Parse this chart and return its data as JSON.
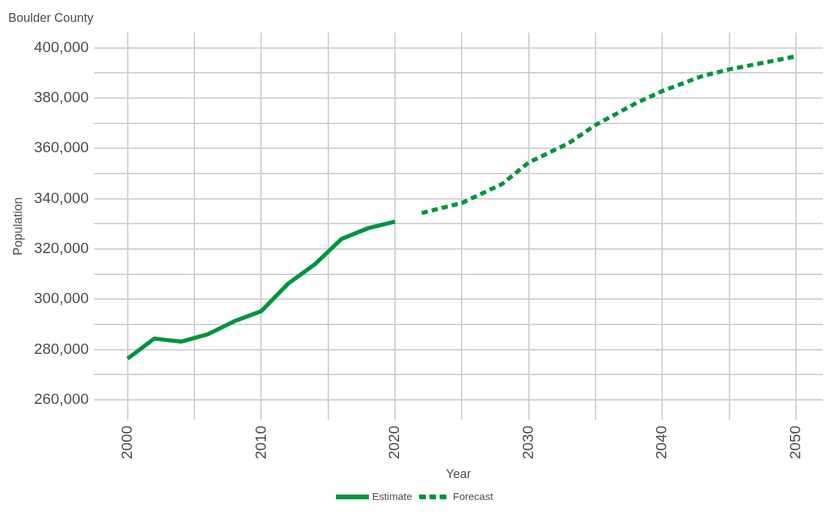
{
  "chart_data": {
    "type": "line",
    "title": "Boulder County",
    "xlabel": "Year",
    "ylabel": "Population",
    "series": [
      {
        "name": "Estimate",
        "color": "#00953f",
        "line_style": "solid",
        "x": [
          2000,
          2002,
          2004,
          2006,
          2008,
          2010,
          2012,
          2014,
          2016,
          2018,
          2020
        ],
        "values": [
          276400,
          284400,
          283200,
          286100,
          291300,
          295300,
          306200,
          313900,
          324000,
          328300,
          330900
        ]
      },
      {
        "name": "Forecast",
        "color": "#00953f",
        "line_style": "dashed",
        "x": [
          2022,
          2025,
          2028,
          2030,
          2033,
          2035,
          2038,
          2040,
          2043,
          2045,
          2048,
          2050
        ],
        "values": [
          334300,
          338300,
          345800,
          354400,
          362100,
          369300,
          377900,
          382800,
          388800,
          391400,
          394500,
          396600
        ]
      }
    ],
    "xlim": [
      1997.5,
      2052
    ],
    "xticks": [
      2000,
      {
        "value": 2005,
        "label": null
      },
      2010,
      {
        "value": 2015,
        "label": null
      },
      2020,
      {
        "value": 2025,
        "label": null
      },
      2030,
      {
        "value": 2035,
        "label": null
      },
      2040,
      {
        "value": 2045,
        "label": null
      },
      2050
    ],
    "ylim": [
      252000,
      406000
    ],
    "yticks": [
      {
        "value": 260000,
        "label": "260,000"
      },
      {
        "value": 270000,
        "label": null
      },
      {
        "value": 280000,
        "label": "280,000"
      },
      {
        "value": 290000,
        "label": null
      },
      {
        "value": 300000,
        "label": "300,000"
      },
      {
        "value": 310000,
        "label": null
      },
      {
        "value": 320000,
        "label": "320,000"
      },
      {
        "value": 330000,
        "label": null
      },
      {
        "value": 340000,
        "label": "340,000"
      },
      {
        "value": 350000,
        "label": null
      },
      {
        "value": 360000,
        "label": "360,000"
      },
      {
        "value": 370000,
        "label": null
      },
      {
        "value": 380000,
        "label": "380,000"
      },
      {
        "value": 390000,
        "label": null
      },
      {
        "value": 400000,
        "label": "400,000"
      }
    ],
    "grid": true,
    "legend": "bottom"
  }
}
